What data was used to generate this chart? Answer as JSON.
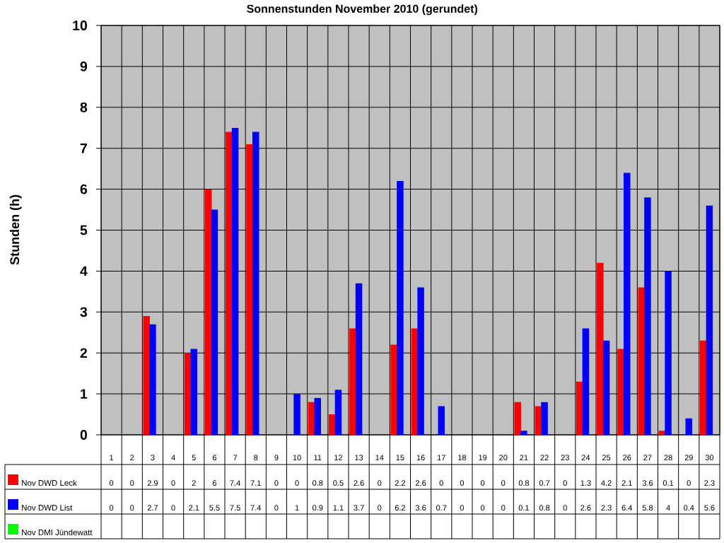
{
  "chart_data": {
    "type": "bar",
    "title": "Sonnenstunden November 2010 (gerundet)",
    "ylabel": "Stunden (h)",
    "categories": [
      "1",
      "2",
      "3",
      "4",
      "5",
      "6",
      "7",
      "8",
      "9",
      "10",
      "11",
      "12",
      "13",
      "14",
      "15",
      "16",
      "17",
      "18",
      "19",
      "20",
      "21",
      "22",
      "23",
      "24",
      "25",
      "26",
      "27",
      "28",
      "29",
      "30"
    ],
    "series": [
      {
        "name": "Nov DWD Leck",
        "color": "#ff0000",
        "values": [
          0,
          0,
          2.9,
          0,
          2,
          6,
          7.4,
          7.1,
          0,
          0,
          0.8,
          0.5,
          2.6,
          0,
          2.2,
          2.6,
          0,
          0,
          0,
          0,
          0.8,
          0.7,
          0,
          1.3,
          4.2,
          2.1,
          3.6,
          0.1,
          0,
          2.3
        ]
      },
      {
        "name": "Nov DWD List",
        "color": "#0000ff",
        "values": [
          0,
          0,
          2.7,
          0,
          2.1,
          5.5,
          7.5,
          7.4,
          0,
          1,
          0.9,
          1.1,
          3.7,
          0,
          6.2,
          3.6,
          0.7,
          0,
          0,
          0,
          0.1,
          0.8,
          0,
          2.6,
          2.3,
          6.4,
          5.8,
          4,
          0.4,
          5.6
        ]
      },
      {
        "name": "Nov DMI Jündewatt",
        "color": "#00ff00",
        "values": [
          null,
          null,
          null,
          null,
          null,
          null,
          null,
          null,
          null,
          null,
          null,
          null,
          null,
          null,
          null,
          null,
          null,
          null,
          null,
          null,
          null,
          null,
          null,
          null,
          null,
          null,
          null,
          null,
          null,
          null
        ]
      }
    ],
    "ylim": [
      0,
      10
    ],
    "yticks": [
      0,
      1,
      2,
      3,
      4,
      5,
      6,
      7,
      8,
      9,
      10
    ],
    "grid": true,
    "legend": "bottom left",
    "data_labels": true
  }
}
